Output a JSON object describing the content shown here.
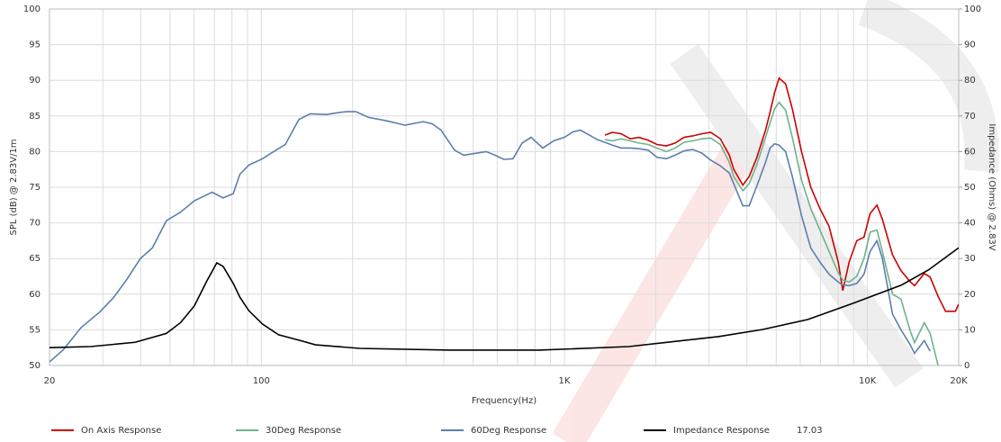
{
  "chart_data": {
    "type": "line",
    "xlabel": "Frequency(Hz)",
    "ylabel": "SPL (dB) @ 2.83V/1m",
    "y2label": "Impedance (Ohms) @ 2.83V",
    "xscale": "log",
    "xlim": [
      20,
      20000
    ],
    "xticks": [
      20,
      100,
      {
        "value": 1000,
        "label": "1K"
      },
      {
        "value": 10000,
        "label": "10K"
      },
      {
        "value": 20000,
        "label": "20K"
      }
    ],
    "ylim": [
      50,
      100
    ],
    "yticks": [
      50,
      55,
      60,
      65,
      70,
      75,
      80,
      85,
      90,
      95,
      100
    ],
    "y2lim": [
      0,
      100
    ],
    "y2ticks": [
      0,
      10,
      20,
      30,
      40,
      50,
      60,
      70,
      80,
      90,
      100
    ],
    "grid": true,
    "legend": "bottom",
    "series": [
      {
        "name": "On Axis Response",
        "color": "#cc0000",
        "x": [
          1361,
          1440,
          1540,
          1650,
          1760,
          1890,
          2020,
          2170,
          2320,
          2480,
          2650,
          2840,
          3040,
          3270,
          3500,
          3620,
          3880,
          4070,
          4300,
          4610,
          4770,
          4940,
          5110,
          5370,
          5650,
          6060,
          6500,
          6970,
          7470,
          8010,
          8290,
          8700,
          9220,
          9740,
          10200,
          10750,
          11200,
          12100,
          12900,
          13800,
          14300,
          15400,
          16100,
          17100,
          18100,
          19500,
          20000
        ],
        "values": [
          82.3,
          82.7,
          82.5,
          81.8,
          82,
          81.6,
          81,
          80.8,
          81.2,
          82,
          82.2,
          82.5,
          82.7,
          81.8,
          79.5,
          77.5,
          75.3,
          76.5,
          79,
          83,
          85.5,
          88.3,
          90.3,
          89.5,
          86,
          80,
          75,
          72,
          69.5,
          64.5,
          60.5,
          64.5,
          67.5,
          68,
          71.3,
          72.5,
          70.5,
          65.5,
          63.3,
          61.8,
          61.2,
          62.9,
          62.4,
          59.7,
          57.6,
          57.6,
          58.6
        ]
      },
      {
        "name": "30Deg Response",
        "color": "#6db38a",
        "x": [
          1361,
          1440,
          1540,
          1650,
          1760,
          1890,
          2020,
          2170,
          2320,
          2480,
          2650,
          2840,
          3040,
          3270,
          3500,
          3620,
          3880,
          4070,
          4300,
          4610,
          4770,
          4940,
          5110,
          5370,
          5650,
          6060,
          6500,
          6970,
          7470,
          8010,
          8290,
          8700,
          9220,
          9740,
          10200,
          10750,
          11200,
          12100,
          12900,
          13800,
          14300,
          15400,
          16100,
          17100
        ],
        "values": [
          81.7,
          81.5,
          81.8,
          81.5,
          81.2,
          81,
          80.5,
          80,
          80.5,
          81.3,
          81.5,
          81.8,
          81.9,
          81,
          78.5,
          76.5,
          74.5,
          75.5,
          78,
          82,
          84,
          86,
          86.9,
          85.8,
          82,
          76,
          72,
          69,
          66,
          63,
          62,
          61.7,
          62.5,
          65,
          68.7,
          69,
          66,
          60,
          59.3,
          55,
          53.2,
          56,
          54.5,
          50
        ]
      },
      {
        "name": "60Deg Response",
        "color": "#5b7fad",
        "x": [
          20,
          22.2,
          25.4,
          29.3,
          32.5,
          35.9,
          39.9,
          43.7,
          48.6,
          54.1,
          60.1,
          68.8,
          74.8,
          80.8,
          84.9,
          90.9,
          100.9,
          108,
          120,
          133,
          145,
          164,
          182,
          191,
          205,
          226,
          260,
          298,
          342,
          366,
          392,
          434,
          465,
          498,
          552,
          590,
          632,
          677,
          725,
          776,
          849,
          921,
          1000,
          1071,
          1130,
          1211,
          1280,
          1361,
          1440,
          1540,
          1650,
          1760,
          1890,
          2020,
          2170,
          2320,
          2480,
          2650,
          2840,
          3040,
          3270,
          3500,
          3620,
          3880,
          4070,
          4300,
          4610,
          4770,
          4940,
          5110,
          5370,
          5650,
          6060,
          6500,
          6970,
          7470,
          8010,
          8290,
          8700,
          9220,
          9740,
          10200,
          10750,
          11200,
          12100,
          12900,
          13800,
          14300,
          15400,
          16100
        ],
        "values": [
          50.5,
          52.2,
          55.3,
          57.5,
          59.5,
          62,
          65,
          66.5,
          70.3,
          71.5,
          73.1,
          74.3,
          73.5,
          74.1,
          76.8,
          78.1,
          79,
          79.8,
          81,
          84.5,
          85.3,
          85.2,
          85.5,
          85.6,
          85.6,
          84.8,
          84.3,
          83.7,
          84.2,
          83.9,
          83,
          80.2,
          79.5,
          79.7,
          80,
          79.5,
          78.9,
          79,
          81.2,
          82,
          80.5,
          81.5,
          82,
          82.8,
          83,
          82.3,
          81.7,
          81.3,
          80.9,
          80.5,
          80.5,
          80.4,
          80.2,
          79.2,
          79,
          79.5,
          80.1,
          80.3,
          79.8,
          78.8,
          78,
          77,
          75.5,
          72.4,
          72.4,
          75,
          78.5,
          80.5,
          81.1,
          80.9,
          80,
          76.5,
          71,
          66.5,
          64.5,
          62.8,
          61.7,
          61.3,
          61.2,
          61.5,
          62.8,
          66,
          67.5,
          65,
          57.2,
          55,
          53,
          51.7,
          53.5,
          52
        ]
      },
      {
        "name": "Impedance Response",
        "color": "#000000",
        "axis": "y2",
        "readout": 17.03,
        "x": [
          20,
          27.3,
          38.3,
          48.6,
          54.1,
          60.1,
          66.1,
          71.3,
          74.8,
          80.8,
          84.9,
          90.9,
          100.9,
          114,
          133,
          151,
          211,
          419,
          826,
          1631,
          3220,
          4510,
          6360,
          8930,
          12900,
          15900,
          20000
        ],
        "values": [
          5,
          5.3,
          6.5,
          9,
          12,
          16.7,
          23.7,
          28.8,
          27.8,
          23,
          19.2,
          15.4,
          11.6,
          8.6,
          7.1,
          5.8,
          4.8,
          4.3,
          4.3,
          5.3,
          8.1,
          10.1,
          12.9,
          17.4,
          22.5,
          26.8,
          33
        ]
      }
    ]
  }
}
